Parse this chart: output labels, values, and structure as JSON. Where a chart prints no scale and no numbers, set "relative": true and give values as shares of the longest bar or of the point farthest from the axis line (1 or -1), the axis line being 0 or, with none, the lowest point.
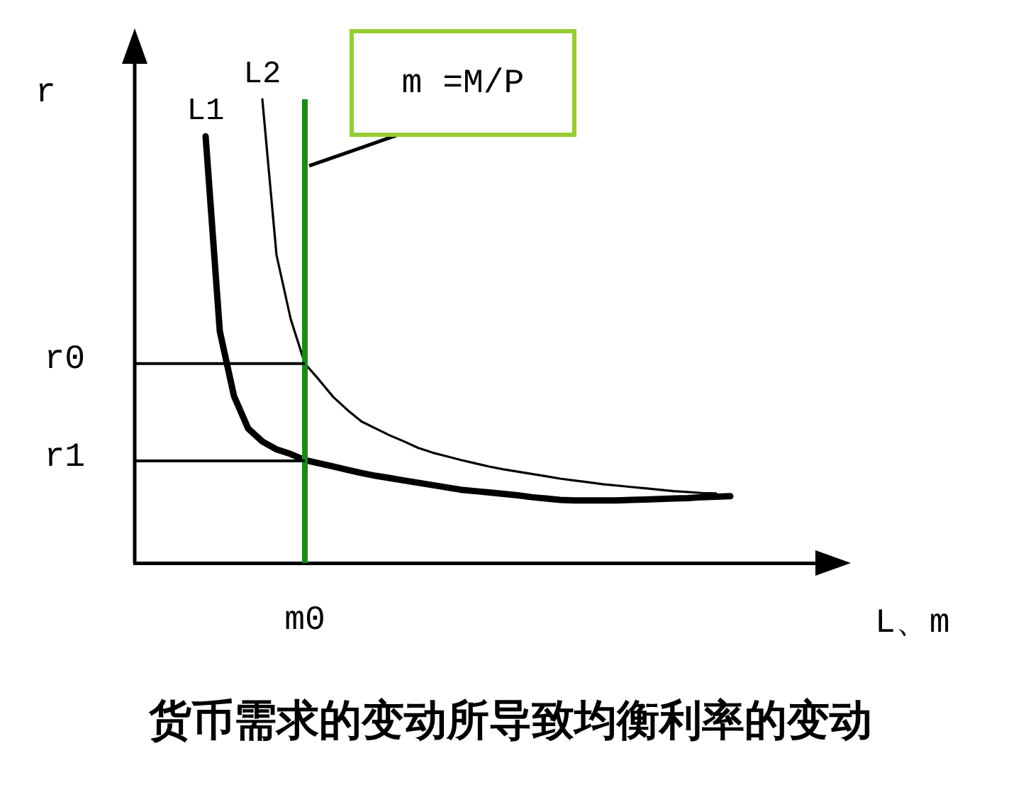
{
  "chart_data": {
    "type": "line",
    "title": "货币需求的变动所导致均衡利率的变动",
    "xlabel": "L、m",
    "ylabel": "r",
    "relative": true,
    "marker": "none",
    "line_style": "solid",
    "legend": false,
    "categories": [
      null,
      null,
      null,
      null,
      null,
      null,
      null,
      null,
      null,
      null,
      null,
      null,
      null,
      null,
      null,
      null,
      null,
      null,
      null,
      null,
      null,
      null,
      null,
      null,
      null,
      null,
      null,
      null,
      null,
      null,
      null,
      null,
      null,
      null,
      null,
      null,
      null,
      null,
      null,
      null,
      null,
      null,
      null,
      null,
      null,
      null,
      null,
      null,
      null,
      null,
      null
    ],
    "series": [
      {
        "name": "L1",
        "color": "#000000",
        "values": [
          null,
          null,
          null,
          null,
          null,
          0.92,
          0.5,
          0.36,
          0.29,
          0.262,
          0.245,
          0.235,
          0.222,
          0.215,
          0.208,
          0.201,
          0.194,
          0.188,
          0.183,
          0.178,
          0.173,
          0.168,
          0.163,
          0.158,
          0.155,
          0.152,
          0.149,
          0.146,
          0.142,
          0.139,
          0.136,
          0.135,
          0.135,
          0.135,
          0.135,
          0.136,
          0.137,
          0.138,
          0.139,
          0.14,
          0.142,
          0.143,
          0.144,
          null,
          null,
          null,
          null,
          null,
          null,
          null,
          null
        ]
      },
      {
        "name": "L2",
        "color": "#000000",
        "values": [
          null,
          null,
          null,
          null,
          null,
          null,
          null,
          null,
          null,
          1,
          0.664,
          0.526,
          0.43,
          0.395,
          0.358,
          0.33,
          0.305,
          0.29,
          0.275,
          0.262,
          0.248,
          0.238,
          0.23,
          0.222,
          0.215,
          0.208,
          0.202,
          0.197,
          0.192,
          0.187,
          0.182,
          0.178,
          0.174,
          0.17,
          0.167,
          0.164,
          0.161,
          0.158,
          0.155,
          0.153,
          0.151,
          0.15,
          null,
          null,
          null,
          null,
          null,
          null,
          null,
          null,
          null
        ]
      }
    ],
    "ref_lines": [
      {
        "axis": "y",
        "value": 0.43,
        "label": "r0",
        "color": "#000000"
      },
      {
        "axis": "y",
        "value": 0.22,
        "label": "r1",
        "color": "#000000"
      }
    ],
    "annotations": [
      "m =M/P",
      "m0"
    ]
  }
}
